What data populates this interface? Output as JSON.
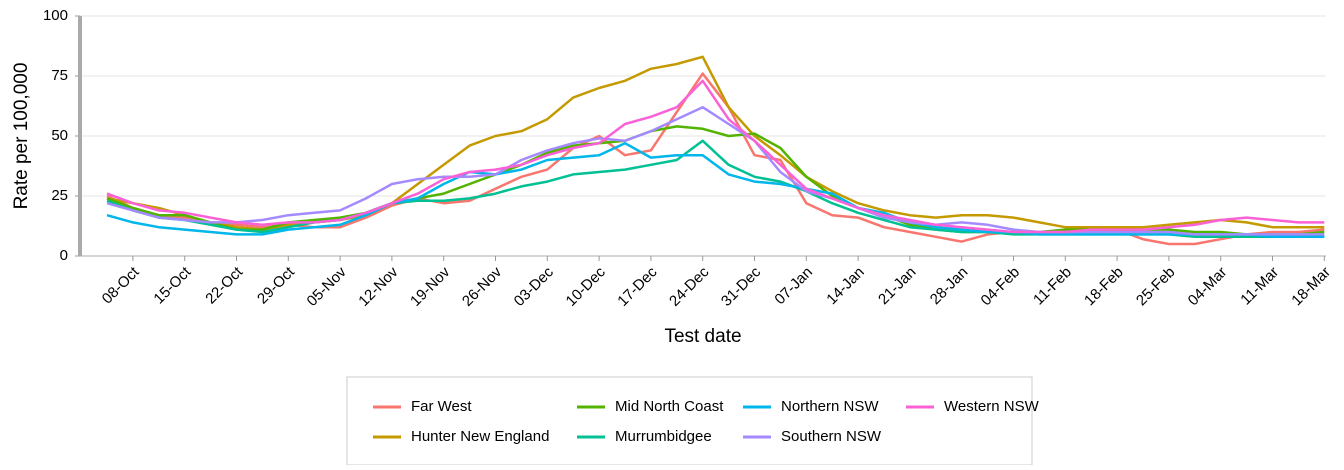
{
  "chart_data": {
    "type": "line",
    "x_label": "Test date",
    "y_label": "Rate per 100,000",
    "categories": [
      null,
      "08-Oct",
      null,
      "15-Oct",
      null,
      "22-Oct",
      null,
      "29-Oct",
      null,
      "05-Nov",
      null,
      "12-Nov",
      null,
      "19-Nov",
      null,
      "26-Nov",
      null,
      "03-Dec",
      null,
      "10-Dec",
      null,
      "17-Dec",
      null,
      "24-Dec",
      null,
      "31-Dec",
      null,
      "07-Jan",
      null,
      "14-Jan",
      null,
      "21-Jan",
      null,
      "28-Jan",
      null,
      "04-Feb",
      null,
      "11-Feb",
      null,
      "18-Feb",
      null,
      "25-Feb",
      null,
      "04-Mar",
      null,
      "11-Mar",
      null,
      "18-Mar"
    ],
    "ylim": [
      0,
      100
    ],
    "yticks": [
      0,
      25,
      50,
      75,
      100
    ],
    "grid": true,
    "series": [
      {
        "name": "Far West",
        "color": "#f8766d",
        "values": [
          25,
          20,
          17,
          16,
          14,
          13,
          12,
          13,
          12,
          12,
          16,
          21,
          24,
          22,
          23,
          28,
          33,
          36,
          45,
          50,
          42,
          44,
          60,
          76,
          62,
          42,
          40,
          22,
          17,
          16,
          12,
          10,
          8,
          6,
          9,
          10,
          9,
          10,
          9,
          11,
          7,
          5,
          5,
          7,
          9,
          10,
          10,
          11
        ]
      },
      {
        "name": "Hunter New England",
        "color": "#c49a00",
        "values": [
          24,
          22,
          20,
          17,
          14,
          12,
          11,
          13,
          14,
          15,
          17,
          22,
          30,
          38,
          46,
          50,
          52,
          57,
          66,
          70,
          73,
          78,
          80,
          83,
          62,
          50,
          42,
          33,
          27,
          22,
          19,
          17,
          16,
          17,
          17,
          16,
          14,
          12,
          12,
          12,
          12,
          13,
          14,
          15,
          14,
          12,
          12,
          12
        ]
      },
      {
        "name": "Mid North Coast",
        "color": "#53b400",
        "values": [
          24,
          20,
          17,
          17,
          14,
          11,
          11,
          14,
          15,
          16,
          18,
          22,
          24,
          26,
          30,
          34,
          38,
          43,
          46,
          47,
          48,
          52,
          54,
          53,
          50,
          51,
          45,
          33,
          25,
          20,
          17,
          13,
          11,
          10,
          10,
          10,
          10,
          11,
          11,
          10,
          11,
          11,
          10,
          10,
          9,
          9,
          9,
          10
        ]
      },
      {
        "name": "Murrumbidgee",
        "color": "#00c094",
        "values": [
          23,
          19,
          16,
          15,
          13,
          11,
          10,
          12,
          14,
          15,
          18,
          22,
          23,
          23,
          24,
          26,
          29,
          31,
          34,
          35,
          36,
          38,
          40,
          48,
          38,
          33,
          31,
          27,
          22,
          18,
          15,
          12,
          11,
          10,
          10,
          9,
          9,
          9,
          9,
          9,
          9,
          9,
          8,
          8,
          8,
          8,
          8,
          8
        ]
      },
      {
        "name": "Northern NSW",
        "color": "#00b6eb",
        "values": [
          17,
          14,
          12,
          11,
          10,
          9,
          9,
          11,
          12,
          13,
          17,
          22,
          24,
          30,
          35,
          34,
          36,
          40,
          41,
          42,
          47,
          41,
          42,
          42,
          34,
          31,
          30,
          28,
          26,
          20,
          18,
          14,
          12,
          11,
          10,
          10,
          9,
          9,
          9,
          9,
          9,
          9,
          9,
          9,
          9,
          8,
          8,
          8
        ]
      },
      {
        "name": "Southern NSW",
        "color": "#a58aff",
        "values": [
          22,
          19,
          16,
          15,
          14,
          14,
          15,
          17,
          18,
          19,
          24,
          30,
          32,
          33,
          33,
          34,
          40,
          44,
          47,
          49,
          48,
          52,
          57,
          62,
          55,
          48,
          35,
          27,
          24,
          20,
          16,
          14,
          13,
          14,
          13,
          11,
          10,
          10,
          10,
          10,
          10,
          10,
          9,
          9,
          9,
          9,
          9,
          9
        ]
      },
      {
        "name": "Western NSW",
        "color": "#fb61d7",
        "values": [
          26,
          22,
          19,
          18,
          16,
          14,
          13,
          14,
          14,
          15,
          18,
          22,
          26,
          32,
          35,
          36,
          38,
          42,
          45,
          47,
          55,
          58,
          62,
          73,
          57,
          48,
          38,
          28,
          24,
          20,
          17,
          15,
          13,
          12,
          11,
          10,
          10,
          10,
          11,
          11,
          11,
          12,
          13,
          15,
          16,
          15,
          14,
          14
        ]
      }
    ]
  }
}
